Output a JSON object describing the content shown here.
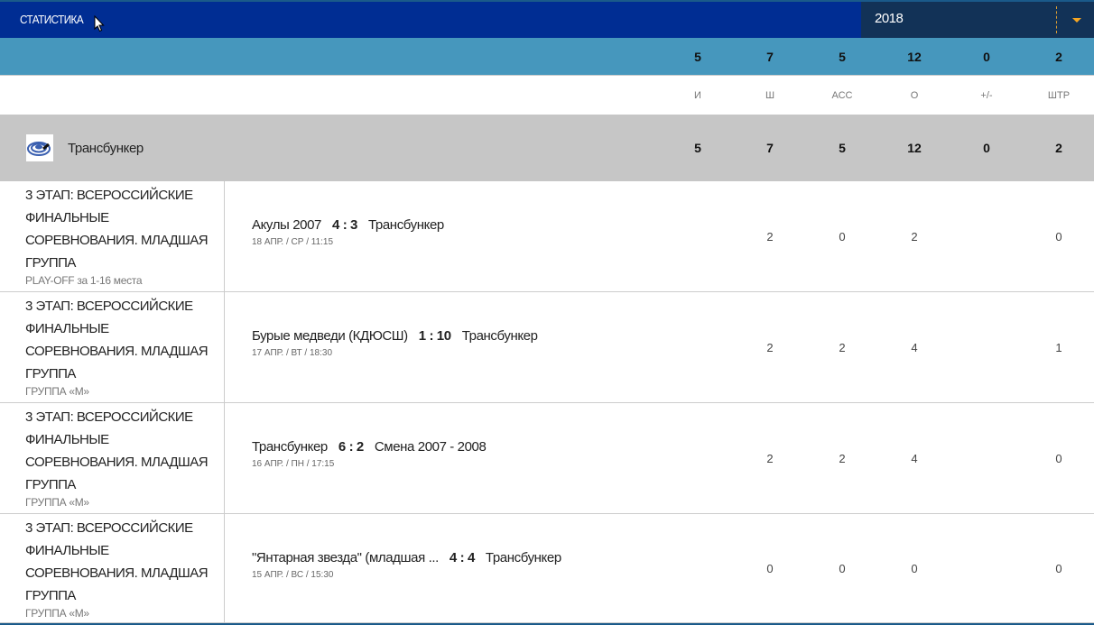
{
  "header": {
    "title": "СТАТИСТИКА",
    "year": "2018"
  },
  "totals": [
    "5",
    "7",
    "5",
    "12",
    "0",
    "2"
  ],
  "columns": [
    "И",
    "Ш",
    "АСС",
    "О",
    "+/-",
    "ШТР"
  ],
  "team": {
    "name": "Трансбункер",
    "stats": [
      "5",
      "7",
      "5",
      "12",
      "0",
      "2"
    ]
  },
  "matches": [
    {
      "stage": "3 ЭТАП: ВСЕРОССИЙСКИЕ ФИНАЛЬНЫЕ СОРЕВНОВАНИЯ. МЛАДШАЯ ГРУППА",
      "sub": "PLAY-OFF за 1-16 места",
      "home": "Акулы 2007",
      "score": "4 : 3",
      "away": "Трансбункер",
      "date": "18 АПР. / СР / 11:15",
      "stats": [
        "",
        "2",
        "0",
        "2",
        "",
        "0"
      ]
    },
    {
      "stage": "3 ЭТАП: ВСЕРОССИЙСКИЕ ФИНАЛЬНЫЕ СОРЕВНОВАНИЯ. МЛАДШАЯ ГРУППА",
      "sub": "ГРУППА «М»",
      "home": "Бурые медведи (КДЮСШ)",
      "score": "1 : 10",
      "away": "Трансбункер",
      "date": "17 АПР. / ВТ / 18:30",
      "stats": [
        "",
        "2",
        "2",
        "4",
        "",
        "1"
      ]
    },
    {
      "stage": "3 ЭТАП: ВСЕРОССИЙСКИЕ ФИНАЛЬНЫЕ СОРЕВНОВАНИЯ. МЛАДШАЯ ГРУППА",
      "sub": "ГРУППА «М»",
      "home": "Трансбункер",
      "score": "6 : 2",
      "away": "Смена 2007 - 2008",
      "date": "16 АПР. / ПН / 17:15",
      "stats": [
        "",
        "2",
        "2",
        "4",
        "",
        "0"
      ]
    },
    {
      "stage": "3 ЭТАП: ВСЕРОССИЙСКИЕ ФИНАЛЬНЫЕ СОРЕВНОВАНИЯ. МЛАДШАЯ ГРУППА",
      "sub": "ГРУППА «М»",
      "home": "\"Янтарная звезда\" (младшая ...",
      "score": "4 : 4",
      "away": "Трансбункер",
      "date": "15 АПР. / ВС / 15:30",
      "stats": [
        "",
        "0",
        "0",
        "0",
        "",
        "0"
      ]
    }
  ],
  "colors": {
    "header": "#002d93",
    "band": "#4697bd",
    "team_row": "#c6c6c6",
    "accent": "#f5a623"
  }
}
